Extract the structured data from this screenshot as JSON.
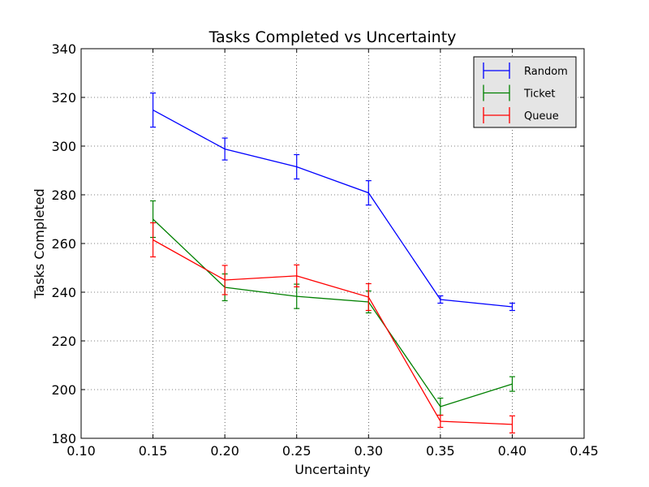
{
  "chart_data": {
    "type": "line",
    "title": "Tasks Completed vs Uncertainty",
    "xlabel": "Uncertainty",
    "ylabel": "Tasks Completed",
    "xlim": [
      0.1,
      0.45
    ],
    "ylim": [
      180,
      340
    ],
    "x_ticks": [
      "0.10",
      "0.15",
      "0.20",
      "0.25",
      "0.30",
      "0.35",
      "0.40",
      "0.45"
    ],
    "y_ticks": [
      "180",
      "200",
      "220",
      "240",
      "260",
      "280",
      "300",
      "320",
      "340"
    ],
    "grid": true,
    "legend_position": "top-right",
    "x": [
      0.15,
      0.2,
      0.25,
      0.3,
      0.35,
      0.4
    ],
    "series": [
      {
        "name": "Random",
        "color": "#0000ff",
        "values": [
          314.8,
          298.8,
          291.5,
          280.8,
          237.0,
          234.0
        ],
        "errors": [
          7.0,
          4.5,
          5.0,
          5.0,
          1.5,
          1.5
        ]
      },
      {
        "name": "Ticket",
        "color": "#008000",
        "values": [
          270.0,
          242.0,
          238.3,
          236.0,
          193.0,
          202.3
        ],
        "errors": [
          7.5,
          5.5,
          5.0,
          4.5,
          3.5,
          3.0
        ]
      },
      {
        "name": "Queue",
        "color": "#ff0000",
        "values": [
          261.5,
          245.0,
          246.7,
          238.0,
          187.0,
          185.7
        ],
        "errors": [
          7.0,
          6.0,
          4.5,
          5.5,
          2.5,
          3.5
        ]
      }
    ]
  }
}
